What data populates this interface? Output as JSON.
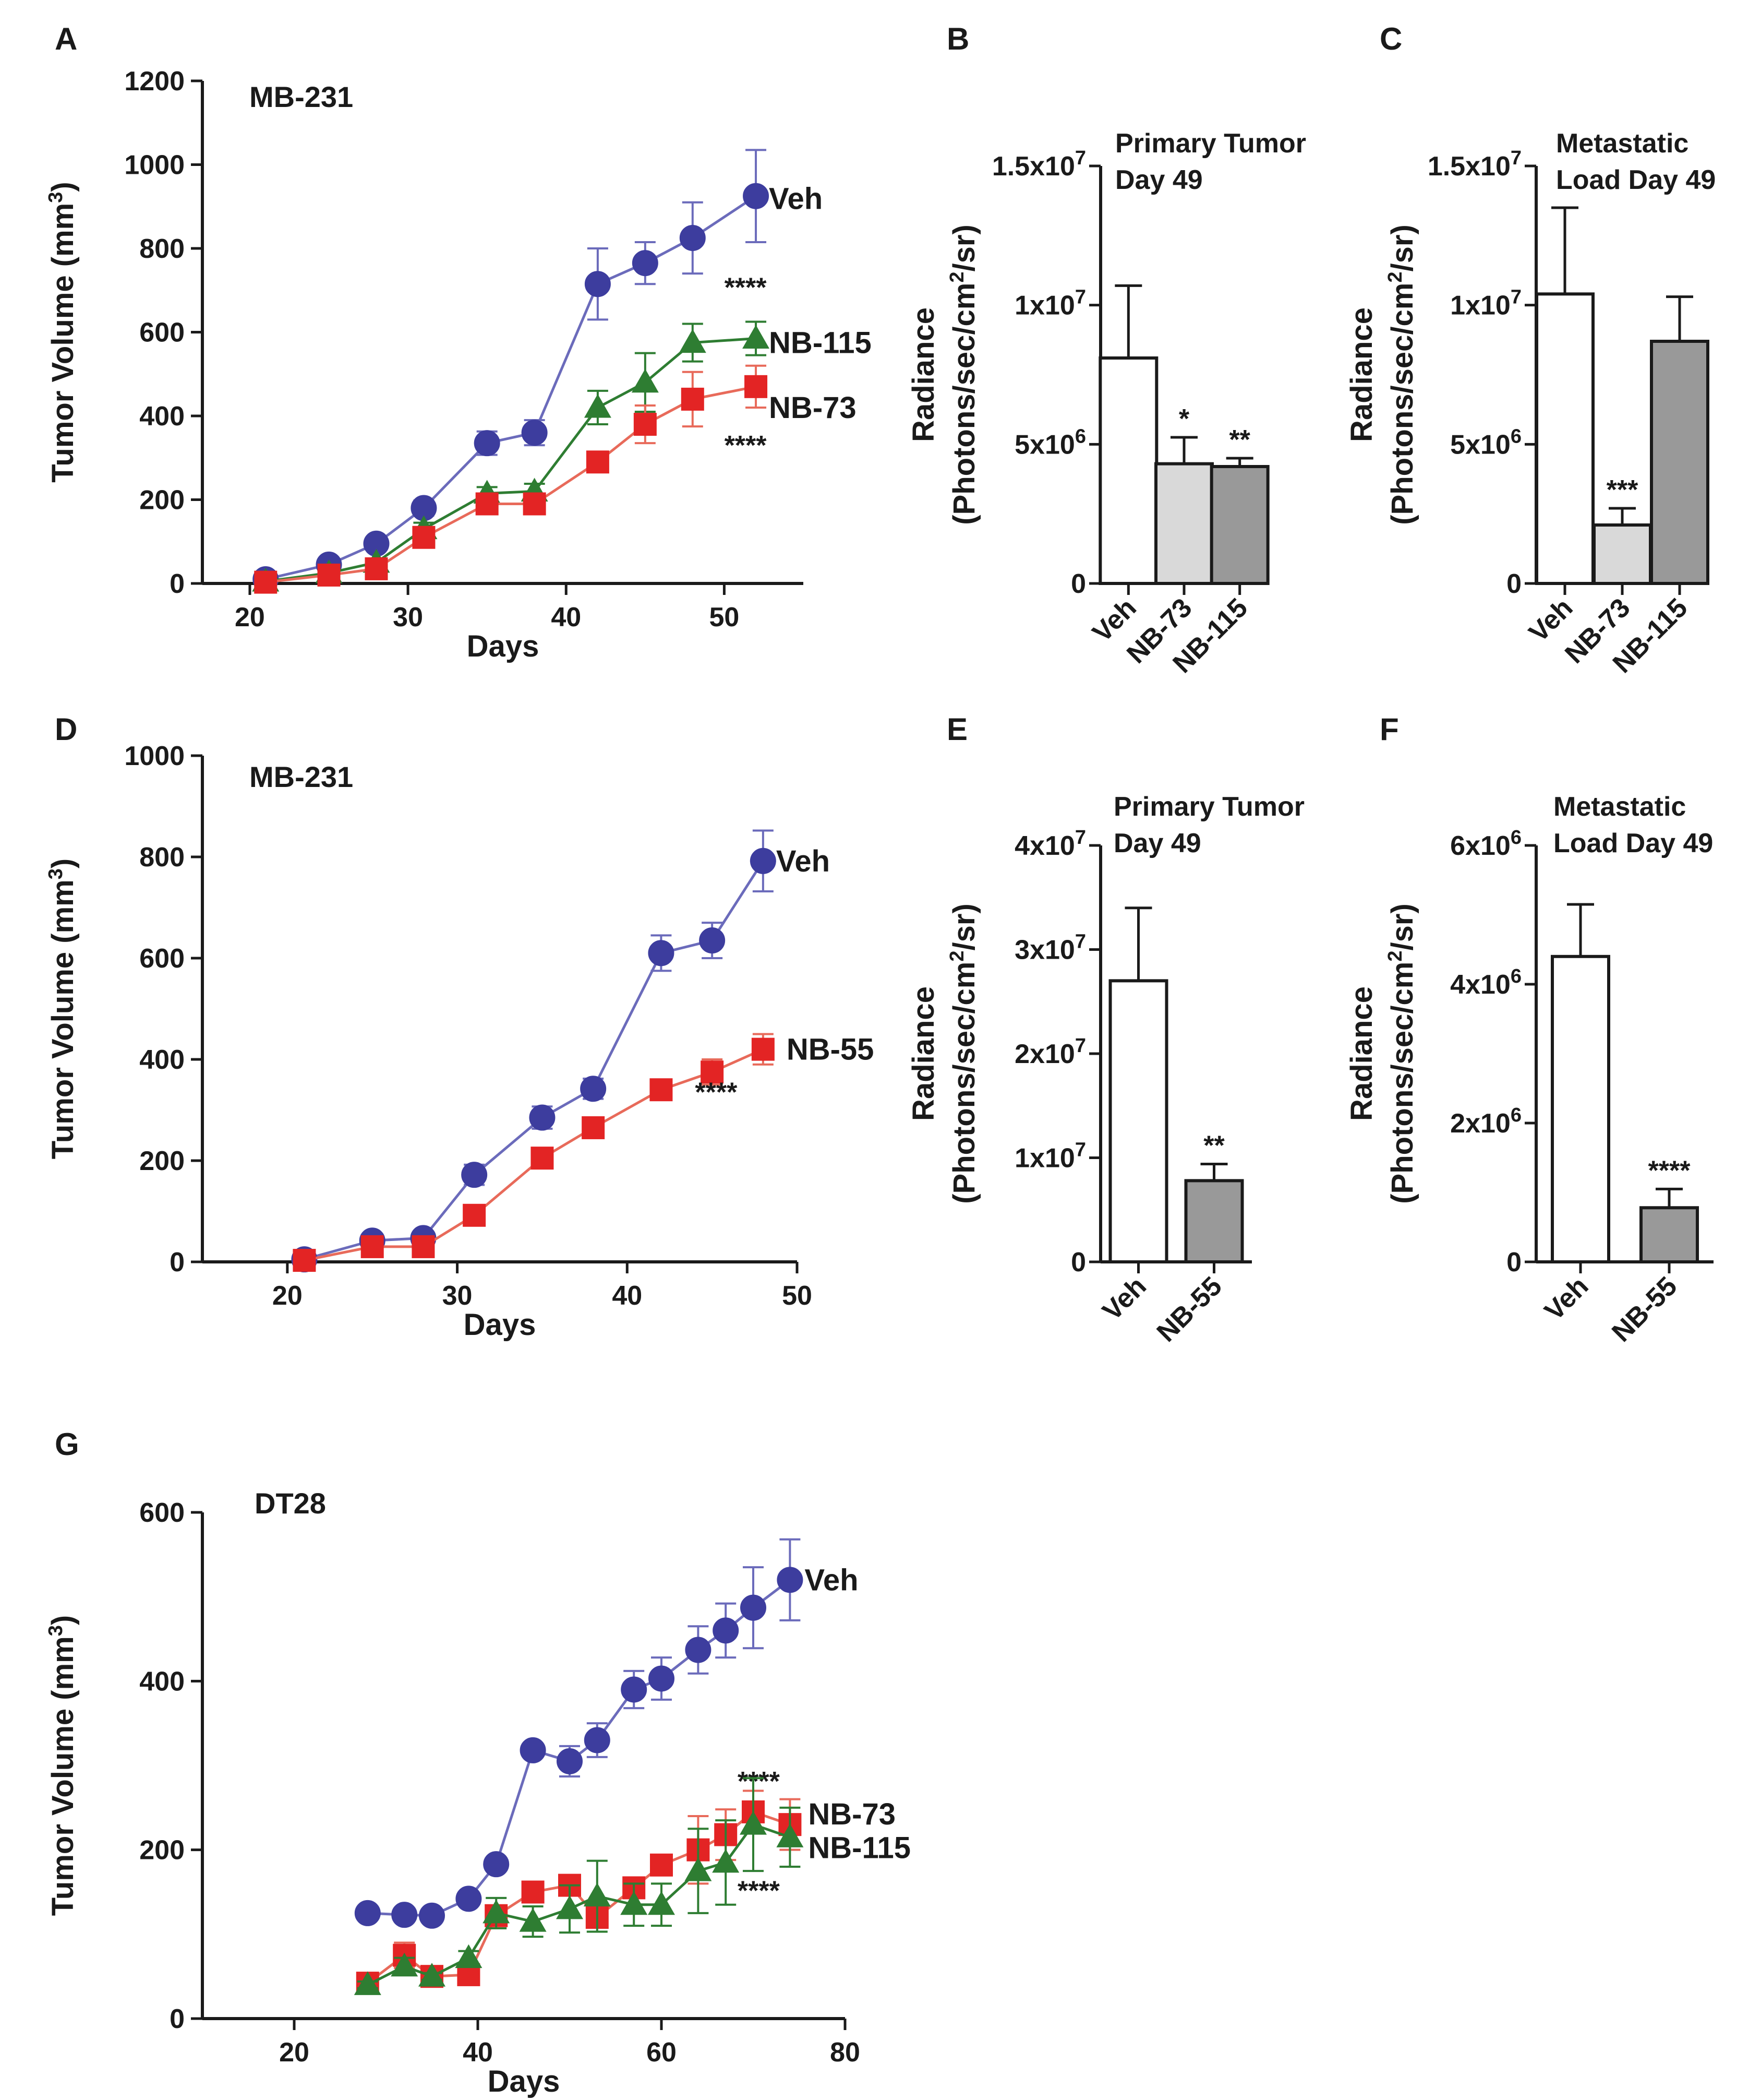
{
  "colors": {
    "veh": "#3d3d9e",
    "veh_line": "#6b6bbb",
    "nb73": "#e32424",
    "nb73_line": "#e86a5a",
    "nb115": "#2e7d32",
    "nb55": "#e32424",
    "bar_white": "#ffffff",
    "bar_light": "#d9d9d9",
    "bar_dark": "#999999",
    "axis": "#1a1a1a"
  },
  "chart_data": [
    {
      "id": "A",
      "panel_label": "A",
      "type": "line",
      "inset_label": "MB-231",
      "xlabel": "Days",
      "ylabel": "Tumor Volume (mm",
      "ylabel_sup": "3",
      "ylabel_close": ")",
      "xlim": [
        17,
        55
      ],
      "ylim": [
        0,
        1200
      ],
      "xticks": [
        20,
        30,
        40,
        50
      ],
      "yticks": [
        0,
        200,
        400,
        600,
        800,
        1000,
        1200
      ],
      "series": [
        {
          "name": "Veh",
          "color": "veh",
          "marker": "circle",
          "x": [
            21,
            25,
            28,
            31,
            35,
            38,
            42,
            45,
            48,
            52
          ],
          "y": [
            10,
            45,
            95,
            180,
            335,
            360,
            715,
            765,
            825,
            925
          ],
          "err": [
            5,
            10,
            12,
            18,
            28,
            30,
            85,
            50,
            85,
            110
          ]
        },
        {
          "name": "NB-115",
          "color": "nb115",
          "marker": "triangle",
          "x": [
            21,
            25,
            28,
            31,
            35,
            38,
            42,
            45,
            48,
            52
          ],
          "y": [
            5,
            25,
            50,
            130,
            215,
            220,
            420,
            480,
            575,
            585
          ],
          "err": [
            3,
            6,
            8,
            15,
            15,
            18,
            40,
            70,
            45,
            40
          ],
          "stars": "****"
        },
        {
          "name": "NB-73",
          "color": "nb73",
          "marker": "square",
          "x": [
            21,
            25,
            28,
            31,
            35,
            38,
            42,
            45,
            48,
            52
          ],
          "y": [
            3,
            20,
            35,
            110,
            190,
            190,
            290,
            380,
            440,
            470
          ],
          "err": [
            3,
            5,
            8,
            12,
            10,
            12,
            15,
            45,
            65,
            50
          ],
          "stars": "****"
        }
      ]
    },
    {
      "id": "D",
      "panel_label": "D",
      "type": "line",
      "inset_label": "MB-231",
      "xlabel": "Days",
      "ylabel": "Tumor Volume (mm",
      "ylabel_sup": "3",
      "ylabel_close": ")",
      "xlim": [
        15,
        50
      ],
      "ylim": [
        0,
        1000
      ],
      "xticks": [
        20,
        30,
        40,
        50
      ],
      "yticks": [
        0,
        200,
        400,
        600,
        800,
        1000
      ],
      "series": [
        {
          "name": "Veh",
          "color": "veh",
          "marker": "circle",
          "x": [
            21,
            25,
            28,
            31,
            35,
            38,
            42,
            45,
            48
          ],
          "y": [
            5,
            42,
            47,
            172,
            285,
            342,
            610,
            635,
            792
          ],
          "err": [
            3,
            8,
            8,
            20,
            22,
            20,
            35,
            35,
            60
          ]
        },
        {
          "name": "NB-55",
          "color": "nb55",
          "marker": "square",
          "x": [
            21,
            25,
            28,
            31,
            35,
            38,
            42,
            45,
            48
          ],
          "y": [
            3,
            30,
            30,
            92,
            205,
            265,
            340,
            375,
            420
          ],
          "err": [
            3,
            5,
            5,
            10,
            12,
            15,
            18,
            25,
            30
          ],
          "stars": "****"
        }
      ]
    },
    {
      "id": "G",
      "panel_label": "G",
      "type": "line",
      "inset_label": "DT28",
      "xlabel": "Days",
      "ylabel": "Tumor Volume (mm",
      "ylabel_sup": "3",
      "ylabel_close": ")",
      "xlim": [
        10,
        80
      ],
      "ylim": [
        0,
        600
      ],
      "xticks": [
        20,
        40,
        60,
        80
      ],
      "yticks": [
        0,
        200,
        400,
        600
      ],
      "series": [
        {
          "name": "Veh",
          "color": "veh",
          "marker": "circle",
          "x": [
            28,
            32,
            35,
            39,
            42,
            46,
            50,
            53,
            57,
            60,
            64,
            67,
            70,
            74
          ],
          "y": [
            125,
            123,
            122,
            142,
            183,
            318,
            305,
            330,
            390,
            403,
            437,
            460,
            487,
            520
          ],
          "err": [
            4,
            4,
            4,
            6,
            8,
            8,
            18,
            20,
            22,
            25,
            28,
            32,
            48,
            48
          ]
        },
        {
          "name": "NB-73",
          "color": "nb73",
          "marker": "square",
          "x": [
            28,
            32,
            35,
            39,
            42,
            46,
            50,
            53,
            57,
            60,
            64,
            67,
            70,
            74
          ],
          "y": [
            42,
            75,
            50,
            52,
            122,
            150,
            158,
            120,
            155,
            182,
            200,
            218,
            245,
            230
          ],
          "err": [
            4,
            15,
            4,
            4,
            12,
            10,
            10,
            10,
            12,
            12,
            40,
            30,
            25,
            30
          ],
          "stars": "****"
        },
        {
          "name": "NB-115",
          "color": "nb115",
          "marker": "triangle",
          "x": [
            28,
            32,
            35,
            39,
            42,
            46,
            50,
            53,
            57,
            60,
            64,
            67,
            70,
            74
          ],
          "y": [
            40,
            62,
            50,
            72,
            125,
            115,
            130,
            145,
            135,
            135,
            175,
            185,
            230,
            215
          ],
          "err": [
            4,
            10,
            4,
            8,
            18,
            18,
            28,
            42,
            25,
            25,
            50,
            50,
            55,
            35
          ],
          "stars": "****"
        }
      ]
    },
    {
      "id": "B",
      "panel_label": "B",
      "type": "bar",
      "title_lines": [
        "Primary Tumor",
        "Day 49"
      ],
      "ylabel_line1": "Radiance",
      "ylabel_line2_a": "(Photons/sec/cm",
      "ylabel_line2_sup": "2",
      "ylabel_line2_b": "/sr)",
      "ylim": [
        0,
        15000000
      ],
      "yticks": [
        0,
        5000000,
        10000000,
        15000000
      ],
      "ytick_labels": [
        {
          "base": "0",
          "exp": ""
        },
        {
          "base": "5x10",
          "exp": "6"
        },
        {
          "base": "1x10",
          "exp": "7"
        },
        {
          "base": "1.5x10",
          "exp": "7"
        }
      ],
      "categories": [
        "Veh",
        "NB-73",
        "NB-115"
      ],
      "values": [
        8100000,
        4300000,
        4200000
      ],
      "err": [
        2600000,
        950000,
        300000
      ],
      "bar_colors": [
        "bar_white",
        "bar_light",
        "bar_dark"
      ],
      "stars": [
        "",
        "*",
        "**"
      ]
    },
    {
      "id": "C",
      "panel_label": "C",
      "type": "bar",
      "title_lines": [
        "Metastatic",
        "Load Day 49"
      ],
      "ylabel_line1": "Radiance",
      "ylabel_line2_a": "(Photons/sec/cm",
      "ylabel_line2_sup": "2",
      "ylabel_line2_b": "/sr)",
      "ylim": [
        0,
        15000000
      ],
      "yticks": [
        0,
        5000000,
        10000000,
        15000000
      ],
      "ytick_labels": [
        {
          "base": "0",
          "exp": ""
        },
        {
          "base": "5x10",
          "exp": "6"
        },
        {
          "base": "1x10",
          "exp": "7"
        },
        {
          "base": "1.5x10",
          "exp": "7"
        }
      ],
      "categories": [
        "Veh",
        "NB-73",
        "NB-115"
      ],
      "values": [
        10400000,
        2100000,
        8700000
      ],
      "err": [
        3100000,
        600000,
        1600000
      ],
      "bar_colors": [
        "bar_white",
        "bar_light",
        "bar_dark"
      ],
      "stars": [
        "",
        "***",
        ""
      ]
    },
    {
      "id": "E",
      "panel_label": "E",
      "type": "bar",
      "title_lines": [
        "Primary Tumor",
        "Day 49"
      ],
      "ylabel_line1": "Radiance",
      "ylabel_line2_a": "(Photons/sec/cm",
      "ylabel_line2_sup": "2",
      "ylabel_line2_b": "/sr)",
      "ylim": [
        0,
        40000000
      ],
      "yticks": [
        0,
        10000000,
        20000000,
        30000000,
        40000000
      ],
      "ytick_labels": [
        {
          "base": "0",
          "exp": ""
        },
        {
          "base": "1x10",
          "exp": "7"
        },
        {
          "base": "2x10",
          "exp": "7"
        },
        {
          "base": "3x10",
          "exp": "7"
        },
        {
          "base": "4x10",
          "exp": "7"
        }
      ],
      "categories": [
        "Veh",
        "NB-55"
      ],
      "values": [
        27000000,
        7800000
      ],
      "err": [
        7000000,
        1600000
      ],
      "bar_colors": [
        "bar_white",
        "bar_dark"
      ],
      "stars": [
        "",
        "**"
      ]
    },
    {
      "id": "F",
      "panel_label": "F",
      "type": "bar",
      "title_lines": [
        "Metastatic",
        "Load Day 49"
      ],
      "ylabel_line1": "Radiance",
      "ylabel_line2_a": "(Photons/sec/cm",
      "ylabel_line2_sup": "2",
      "ylabel_line2_b": "/sr)",
      "ylim": [
        0,
        6000000
      ],
      "yticks": [
        0,
        2000000,
        4000000,
        6000000
      ],
      "ytick_labels": [
        {
          "base": "0",
          "exp": ""
        },
        {
          "base": "2x10",
          "exp": "6"
        },
        {
          "base": "4x10",
          "exp": "6"
        },
        {
          "base": "6x10",
          "exp": "6"
        }
      ],
      "categories": [
        "Veh",
        "NB-55"
      ],
      "values": [
        4400000,
        780000
      ],
      "err": [
        750000,
        270000
      ],
      "bar_colors": [
        "bar_white",
        "bar_dark"
      ],
      "stars": [
        "",
        "****"
      ]
    }
  ]
}
